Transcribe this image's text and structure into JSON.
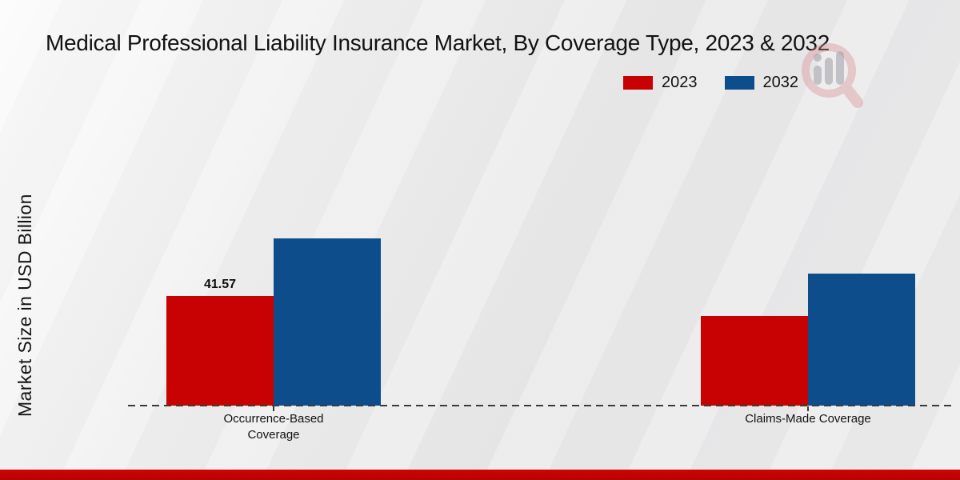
{
  "title": "Medical Professional Liability Insurance Market, By Coverage Type, 2023 & 2032",
  "y_axis_label": "Market Size in USD Billion",
  "legend": [
    {
      "label": "2023",
      "color": "#c80202"
    },
    {
      "label": "2032",
      "color": "#0e4d8c"
    }
  ],
  "watermark_icon": "market-research-magnifier-logo",
  "colors": {
    "series_2023": "#c80202",
    "series_2032": "#0e4d8c",
    "bottom_strip": "#c00404",
    "axis": "#3b3b3b"
  },
  "chart_data": {
    "type": "bar",
    "title": "Medical Professional Liability Insurance Market, By Coverage Type, 2023 & 2032",
    "categories": [
      "Occurrence-Based Coverage",
      "Claims-Made Coverage"
    ],
    "series": [
      {
        "name": "2023",
        "color": "#c80202",
        "values": [
          41.57,
          34.0
        ],
        "data_labels": [
          "41.57",
          ""
        ]
      },
      {
        "name": "2032",
        "color": "#0e4d8c",
        "values": [
          63.4,
          50.1
        ],
        "data_labels": [
          "",
          ""
        ]
      }
    ],
    "xlabel": "",
    "ylabel": "Market Size in USD Billion",
    "ylim": [
      0,
      65
    ],
    "grid": false,
    "y_axis_ticks_visible": false,
    "legend_position": "top-right",
    "baseline_style": "dashed"
  }
}
